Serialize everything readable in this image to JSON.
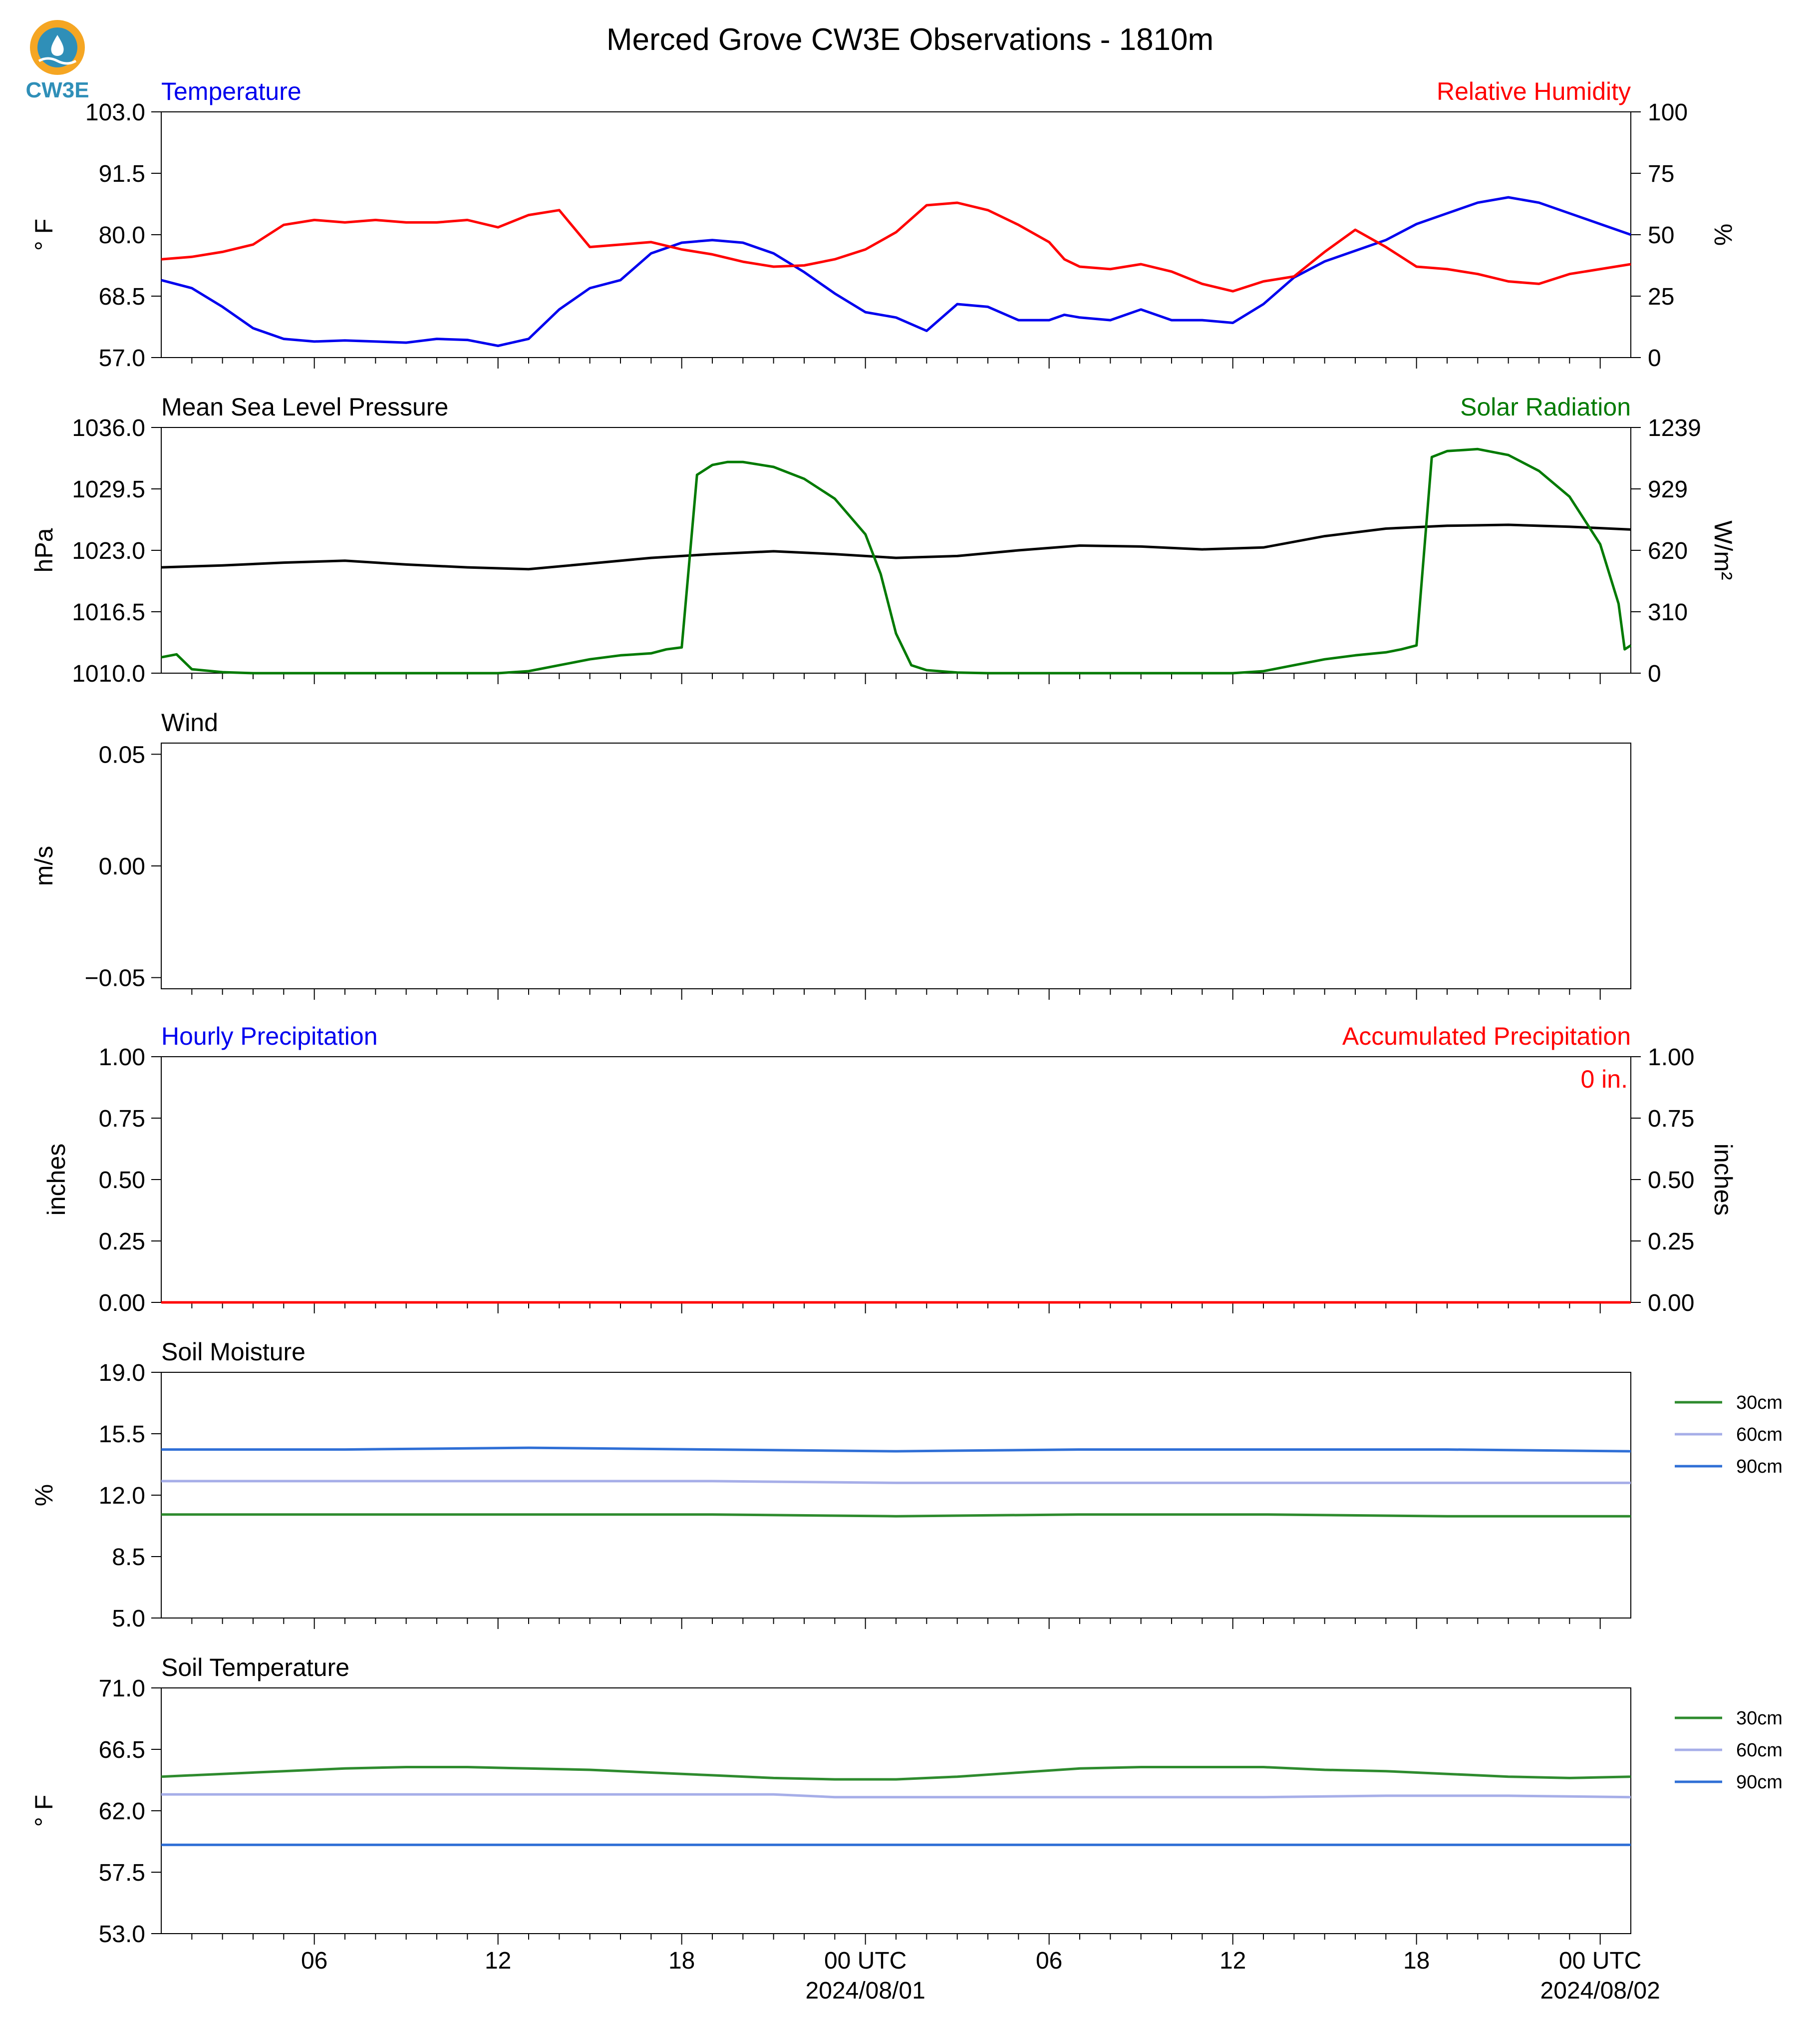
{
  "title": "Merced Grove CW3E Observations - 1810m",
  "logo_text": "CW3E",
  "colors": {
    "temperature": "#0000ee",
    "humidity": "#ff0000",
    "pressure": "#000000",
    "solar": "#007a00",
    "soil_30": "#2e8b2e",
    "soil_60": "#a6aee8",
    "soil_90": "#2f6fd6",
    "logo_ring": "#f5a623",
    "logo_blue": "#2f8fb8"
  },
  "x_axis": {
    "tick_labels": [
      "06",
      "12",
      "18",
      "00 UTC",
      "06",
      "12",
      "18",
      "00 UTC"
    ],
    "tick_hours": [
      6,
      12,
      18,
      24,
      30,
      36,
      42,
      48
    ],
    "date_labels": [
      "2024/08/01",
      "2024/08/02"
    ],
    "range_hours": [
      1,
      49
    ]
  },
  "chart_data": [
    {
      "type": "line",
      "name": "temp_rh",
      "title_left": "Temperature",
      "title_right": "Relative Humidity",
      "ylabel_left": "° F",
      "ylabel_right": "%",
      "ylim_left": [
        57,
        103
      ],
      "ylim_right": [
        0,
        100
      ],
      "yticks_left": [
        "57.0",
        "68.5",
        "80.0",
        "91.5",
        "103.0"
      ],
      "yticks_right": [
        "0",
        "25",
        "50",
        "75",
        "100"
      ],
      "series": [
        {
          "label": "temperature",
          "axis": "left",
          "x": [
            1,
            2,
            3,
            4,
            5,
            6,
            7,
            8,
            9,
            10,
            11,
            12,
            13,
            14,
            15,
            16,
            17,
            18,
            19,
            20,
            21,
            22,
            23,
            24,
            25,
            26,
            27,
            28,
            29,
            30,
            30.5,
            31,
            32,
            33,
            34,
            35,
            36,
            37,
            38,
            39,
            40,
            41,
            42,
            43,
            44,
            45,
            46,
            47,
            48,
            49
          ],
          "y": [
            71.5,
            70,
            66.5,
            62.5,
            60.5,
            60,
            60.2,
            60,
            59.8,
            60.5,
            60.3,
            59.2,
            60.5,
            66,
            70,
            71.5,
            76.5,
            78.5,
            79,
            78.5,
            76.5,
            73,
            69,
            65.5,
            64.5,
            62,
            67,
            66.5,
            64,
            64,
            65,
            64.5,
            64,
            66,
            64,
            64,
            63.5,
            67,
            72,
            75,
            77,
            79,
            82,
            84,
            86,
            87,
            86,
            84,
            82,
            80
          ]
        },
        {
          "label": "relative_humidity",
          "axis": "right",
          "x": [
            1,
            2,
            3,
            4,
            5,
            6,
            7,
            8,
            9,
            10,
            11,
            12,
            13,
            14,
            15,
            16,
            17,
            18,
            19,
            20,
            21,
            22,
            23,
            24,
            25,
            26,
            27,
            28,
            29,
            30,
            30.5,
            31,
            32,
            33,
            34,
            35,
            36,
            37,
            38,
            39,
            40,
            41,
            42,
            43,
            44,
            45,
            46,
            47,
            48,
            49
          ],
          "y": [
            40,
            41,
            43,
            46,
            54,
            56,
            55,
            56,
            55,
            55,
            56,
            53,
            58,
            60,
            45,
            46,
            47,
            44,
            42,
            39,
            37,
            37.5,
            40,
            44,
            51,
            62,
            63,
            60,
            54,
            47,
            40,
            37,
            36,
            38,
            35,
            30,
            27,
            31,
            33,
            43,
            52,
            45,
            37,
            36,
            34,
            31,
            30,
            34,
            36,
            38
          ]
        }
      ]
    },
    {
      "type": "line",
      "name": "pressure_solar",
      "title_left": "Mean Sea Level Pressure",
      "title_right": "Solar Radiation",
      "ylabel_left": "hPa",
      "ylabel_right": "W/m²",
      "ylim_left": [
        1010,
        1036
      ],
      "ylim_right": [
        0,
        1239
      ],
      "yticks_left": [
        "1010.0",
        "1016.5",
        "1023.0",
        "1029.5",
        "1036.0"
      ],
      "yticks_right": [
        "0",
        "310",
        "620",
        "929",
        "1239"
      ],
      "series": [
        {
          "label": "mean_sea_level_pressure",
          "axis": "left",
          "x": [
            1,
            3,
            5,
            7,
            9,
            11,
            13,
            15,
            17,
            19,
            21,
            23,
            25,
            27,
            29,
            31,
            33,
            35,
            37,
            39,
            41,
            43,
            45,
            47,
            49
          ],
          "y": [
            1021.2,
            1021.4,
            1021.7,
            1021.9,
            1021.5,
            1021.2,
            1021.0,
            1021.6,
            1022.2,
            1022.6,
            1022.9,
            1022.6,
            1022.2,
            1022.4,
            1023.0,
            1023.5,
            1023.4,
            1023.1,
            1023.3,
            1024.5,
            1025.3,
            1025.6,
            1025.7,
            1025.5,
            1025.2
          ]
        },
        {
          "label": "solar_radiation",
          "axis": "right",
          "x": [
            1,
            1.5,
            2,
            3,
            4,
            10,
            12,
            13,
            14,
            15,
            16,
            17,
            17.5,
            18,
            18.5,
            19,
            19.5,
            20,
            21,
            22,
            23,
            24,
            24.5,
            25,
            25.5,
            26,
            27,
            28,
            34,
            36,
            37,
            38,
            39,
            40,
            41,
            41.5,
            42,
            42.5,
            43,
            44,
            45,
            46,
            47,
            48,
            48.6,
            48.8,
            49
          ],
          "y": [
            80,
            95,
            20,
            5,
            0,
            0,
            0,
            10,
            40,
            70,
            90,
            100,
            120,
            130,
            1000,
            1050,
            1065,
            1065,
            1040,
            980,
            880,
            700,
            500,
            200,
            40,
            15,
            3,
            0,
            0,
            0,
            10,
            40,
            70,
            90,
            105,
            120,
            140,
            1090,
            1120,
            1130,
            1100,
            1020,
            890,
            650,
            350,
            120,
            140
          ]
        }
      ]
    },
    {
      "type": "line",
      "name": "wind",
      "title_left": "Wind",
      "ylabel_left": "m/s",
      "ylim_left": [
        -0.055,
        0.055
      ],
      "yticks_left": [
        "−0.05",
        "0.00",
        "0.05"
      ],
      "ytick_values": [
        -0.05,
        0,
        0.05
      ],
      "series": []
    },
    {
      "type": "line",
      "name": "precip",
      "title_left": "Hourly Precipitation",
      "title_right": "Accumulated Precipitation",
      "ylabel_left": "inches",
      "ylabel_right": "inches",
      "ylim_left": [
        0,
        1
      ],
      "ylim_right": [
        0,
        1
      ],
      "yticks_left": [
        "0.00",
        "0.25",
        "0.50",
        "0.75",
        "1.00"
      ],
      "yticks_right": [
        "0.00",
        "0.25",
        "0.50",
        "0.75",
        "1.00"
      ],
      "annotation": "0 in.",
      "series": [
        {
          "label": "hourly_precipitation",
          "axis": "left",
          "x": [
            1,
            49
          ],
          "y": [
            0,
            0
          ]
        },
        {
          "label": "accumulated_precipitation",
          "axis": "right",
          "x": [
            1,
            49
          ],
          "y": [
            0,
            0
          ]
        }
      ]
    },
    {
      "type": "line",
      "name": "soil_moisture",
      "title_left": "Soil Moisture",
      "ylabel_left": "%",
      "ylim_left": [
        5,
        19
      ],
      "yticks_left": [
        "5.0",
        "8.5",
        "12.0",
        "15.5",
        "19.0"
      ],
      "legend": [
        "30cm",
        "60cm",
        "90cm"
      ],
      "series": [
        {
          "name": "30cm",
          "x": [
            1,
            7,
            13,
            19,
            25,
            31,
            37,
            43,
            49
          ],
          "y": [
            10.9,
            10.9,
            10.9,
            10.9,
            10.8,
            10.9,
            10.9,
            10.8,
            10.8
          ]
        },
        {
          "name": "60cm",
          "x": [
            1,
            7,
            13,
            19,
            25,
            31,
            37,
            43,
            49
          ],
          "y": [
            12.8,
            12.8,
            12.8,
            12.8,
            12.7,
            12.7,
            12.7,
            12.7,
            12.7
          ]
        },
        {
          "name": "90cm",
          "x": [
            1,
            7,
            13,
            19,
            25,
            31,
            37,
            43,
            49
          ],
          "y": [
            14.6,
            14.6,
            14.7,
            14.6,
            14.5,
            14.6,
            14.6,
            14.6,
            14.5
          ]
        }
      ]
    },
    {
      "type": "line",
      "name": "soil_temperature",
      "title_left": "Soil Temperature",
      "ylabel_left": "° F",
      "ylim_left": [
        53,
        71
      ],
      "yticks_left": [
        "53.0",
        "57.5",
        "62.0",
        "66.5",
        "71.0"
      ],
      "legend": [
        "30cm",
        "60cm",
        "90cm"
      ],
      "series": [
        {
          "name": "30cm",
          "x": [
            1,
            3,
            5,
            7,
            9,
            11,
            13,
            15,
            17,
            19,
            21,
            23,
            25,
            27,
            29,
            31,
            33,
            35,
            37,
            39,
            41,
            43,
            45,
            47,
            49
          ],
          "y": [
            64.5,
            64.7,
            64.9,
            65.1,
            65.2,
            65.2,
            65.1,
            65.0,
            64.8,
            64.6,
            64.4,
            64.3,
            64.3,
            64.5,
            64.8,
            65.1,
            65.2,
            65.2,
            65.2,
            65.0,
            64.9,
            64.7,
            64.5,
            64.4,
            64.5
          ]
        },
        {
          "name": "60cm",
          "x": [
            1,
            5,
            9,
            13,
            17,
            21,
            23,
            25,
            29,
            33,
            37,
            41,
            45,
            49
          ],
          "y": [
            63.2,
            63.2,
            63.2,
            63.2,
            63.2,
            63.2,
            63.0,
            63.0,
            63.0,
            63.0,
            63.0,
            63.1,
            63.1,
            63.0
          ]
        },
        {
          "name": "90cm",
          "x": [
            1,
            49
          ],
          "y": [
            59.5,
            59.5
          ]
        }
      ]
    }
  ]
}
